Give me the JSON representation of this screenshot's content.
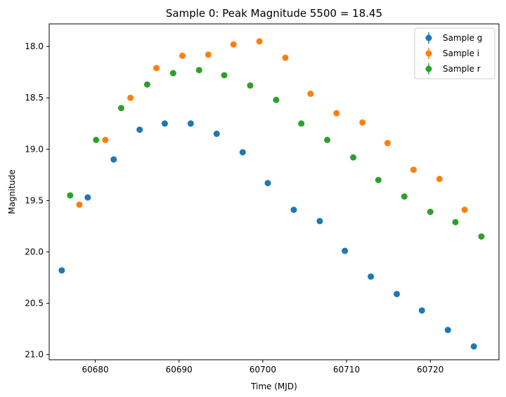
{
  "chart_data": {
    "type": "scatter",
    "title": "Sample 0: Peak Magnitude 5500 = 18.45",
    "xlabel": "Time (MJD)",
    "ylabel": "Magnitude",
    "xlim": [
      60674.5,
      60728.2
    ],
    "ylim": [
      21.05,
      17.78
    ],
    "y_inverted": true,
    "grid": false,
    "legend_position": "top-right",
    "x_ticks": [
      60680,
      60690,
      60700,
      60710,
      60720
    ],
    "x_tick_labels": [
      "60680",
      "60690",
      "60700",
      "60710",
      "60720"
    ],
    "y_ticks": [
      18.0,
      18.5,
      19.0,
      19.5,
      20.0,
      20.5,
      21.0
    ],
    "y_tick_labels": [
      "18.0",
      "18.5",
      "19.0",
      "19.5",
      "20.0",
      "20.5",
      "21.0"
    ],
    "series": [
      {
        "name": "Sample g",
        "color": "#1f77b4",
        "x": [
          60676.0,
          60679.1,
          60682.2,
          60685.3,
          60688.3,
          60691.4,
          60694.5,
          60697.6,
          60700.6,
          60703.7,
          60706.8,
          60709.8,
          60712.9,
          60716.0,
          60719.0,
          60722.1,
          60725.2
        ],
        "y": [
          20.18,
          19.47,
          19.1,
          18.81,
          18.75,
          18.75,
          18.85,
          19.03,
          19.33,
          19.59,
          19.7,
          19.99,
          20.24,
          20.41,
          20.57,
          20.76,
          20.92
        ]
      },
      {
        "name": "Sample i",
        "color": "#ff7f0e",
        "x": [
          60678.1,
          60681.2,
          60684.2,
          60687.3,
          60690.4,
          60693.5,
          60696.5,
          60699.6,
          60702.7,
          60705.7,
          60708.8,
          60711.9,
          60714.9,
          60718.0,
          60721.1,
          60724.1
        ],
        "y": [
          19.54,
          18.91,
          18.5,
          18.21,
          18.09,
          18.08,
          17.98,
          17.95,
          18.11,
          18.46,
          18.65,
          18.74,
          18.94,
          19.2,
          19.29,
          19.59
        ]
      },
      {
        "name": "Sample r",
        "color": "#2ca02c",
        "x": [
          60677.0,
          60680.1,
          60683.1,
          60686.2,
          60689.3,
          60692.4,
          60695.4,
          60698.5,
          60701.6,
          60704.6,
          60707.7,
          60710.8,
          60713.8,
          60716.9,
          60720.0,
          60723.0,
          60726.1
        ],
        "y": [
          19.45,
          18.91,
          18.6,
          18.37,
          18.26,
          18.23,
          18.28,
          18.38,
          18.52,
          18.75,
          18.91,
          19.08,
          19.3,
          19.46,
          19.61,
          19.71,
          19.85
        ]
      }
    ]
  }
}
